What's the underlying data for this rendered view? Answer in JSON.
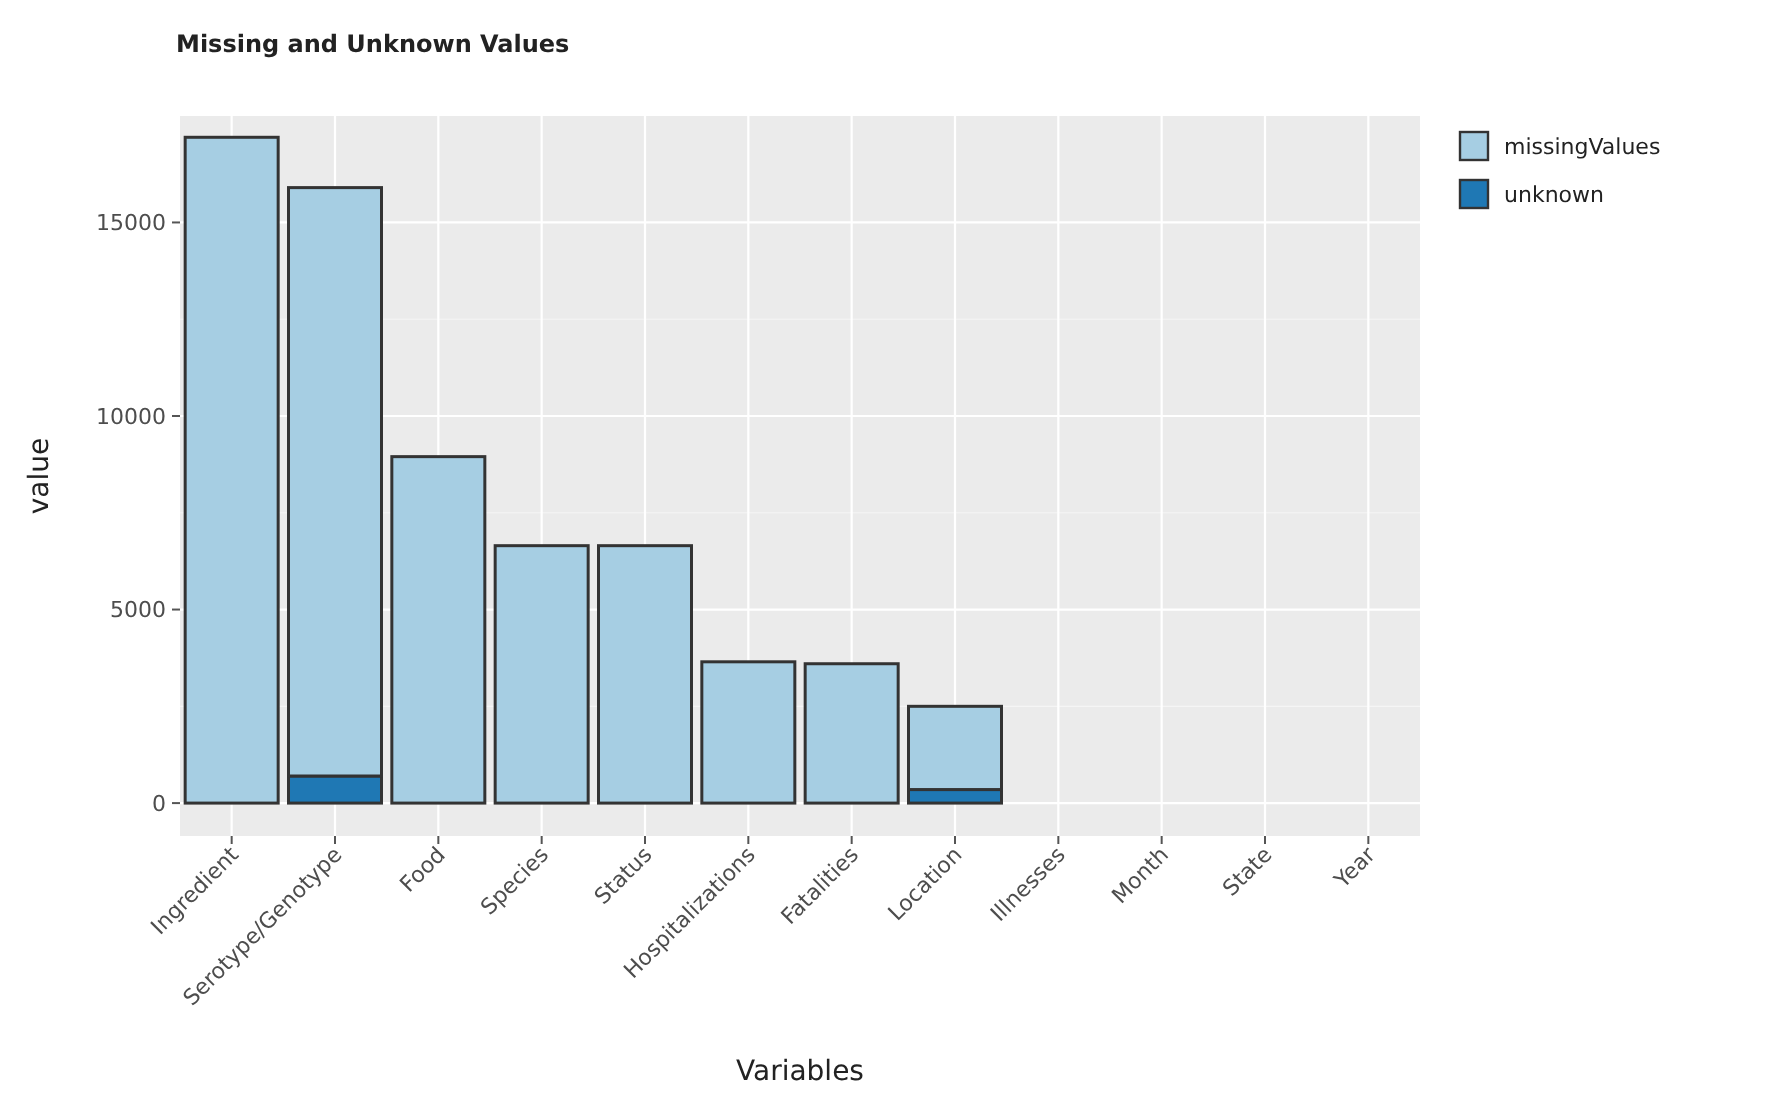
{
  "chart_data": {
    "type": "bar",
    "title": "Missing and Unknown Values",
    "xlabel": "Variables",
    "ylabel": "value",
    "categories": [
      "Ingredient",
      "Serotype/Genotype",
      "Food",
      "Species",
      "Status",
      "Hospitalizations",
      "Fatalities",
      "Location",
      "Illnesses",
      "Month",
      "State",
      "Year"
    ],
    "stacked": true,
    "series": [
      {
        "name": "unknown",
        "color": "#1f78b4",
        "values": [
          0,
          700,
          0,
          0,
          0,
          0,
          0,
          350,
          0,
          0,
          0,
          0
        ]
      },
      {
        "name": "missingValues",
        "color": "#a6cee3",
        "values": [
          17200,
          15200,
          8950,
          6650,
          6650,
          3650,
          3600,
          2150,
          0,
          0,
          0,
          0
        ]
      }
    ],
    "ylim": [
      -850,
      17750
    ],
    "yticks": [
      0,
      5000,
      10000,
      15000
    ],
    "grid": true,
    "legend": "right"
  }
}
